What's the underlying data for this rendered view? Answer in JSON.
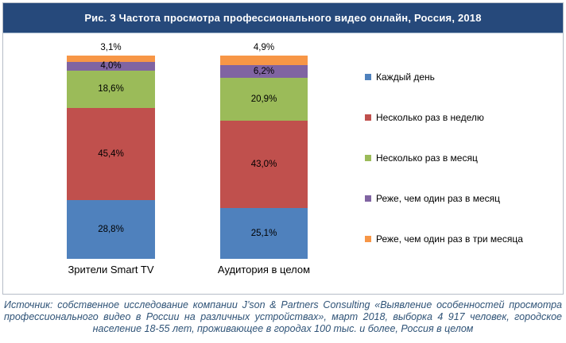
{
  "title": "Рис. 3 Частота просмотра профессионального видео онлайн, Россия, 2018",
  "chart_data": {
    "type": "bar",
    "stacked": true,
    "categories": [
      "Зрители Smart TV",
      "Аудитория в целом"
    ],
    "series": [
      {
        "name": "Каждый день",
        "color": "#4F81BD",
        "values": [
          28.8,
          25.1
        ]
      },
      {
        "name": "Несколько раз в неделю",
        "color": "#C0504D",
        "values": [
          45.4,
          43.0
        ]
      },
      {
        "name": "Несколько раз в месяц",
        "color": "#9BBB59",
        "values": [
          18.6,
          20.9
        ]
      },
      {
        "name": "Реже, чем один раз в месяц",
        "color": "#8064A2",
        "values": [
          4.0,
          6.2
        ]
      },
      {
        "name": "Реже, чем один раз в три месяца",
        "color": "#F79646",
        "values": [
          3.1,
          4.9
        ]
      }
    ],
    "data_labels": [
      [
        "28,8%",
        "45,4%",
        "18,6%",
        "4,0%",
        "3,1%"
      ],
      [
        "25,1%",
        "43,0%",
        "20,9%",
        "6,2%",
        "4,9%"
      ]
    ],
    "ylim": [
      0,
      100
    ],
    "grid": false,
    "legend_position": "right"
  },
  "source": "Источник: собственное исследование компании J’son & Partners Consulting «Выявление особенностей просмотра профессионального видео в России на различных устройствах», март 2018, выборка 4 917 человек, городское население 18-55 лет, проживающее в городах 100 тыс. и более, Россия в целом",
  "colors": {
    "title_bar_bg": "#26497B",
    "title_text": "#FFFFFF",
    "panel_border": "#B6BDC7",
    "label_text": "#000000",
    "source_text": "#2F5377"
  }
}
